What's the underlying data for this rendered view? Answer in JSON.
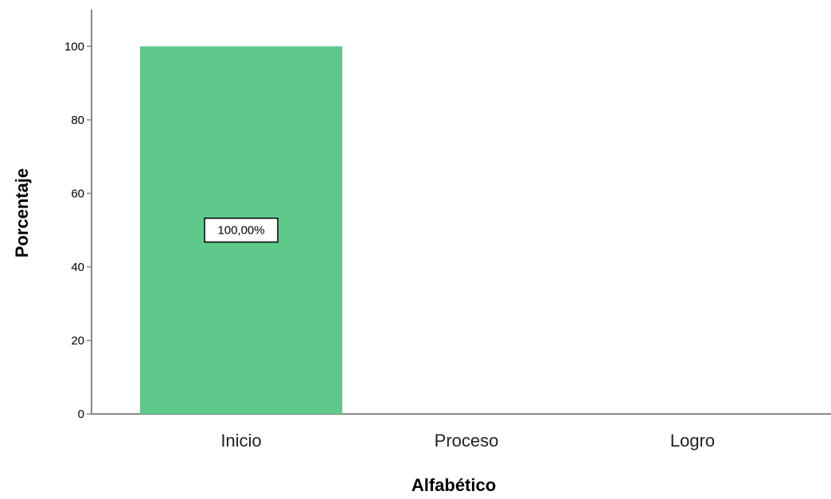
{
  "chart_data": {
    "type": "bar",
    "categories": [
      "Inicio",
      "Proceso",
      "Logro"
    ],
    "values": [
      100,
      0,
      0
    ],
    "data_labels": [
      "100,00%",
      "",
      ""
    ],
    "xlabel": "Alfabético",
    "ylabel": "Porcentaje",
    "ylim": [
      0,
      110
    ],
    "yticks": [
      0,
      20,
      40,
      60,
      80,
      100
    ],
    "grid": false,
    "colors": {
      "bar": "#5ec98b",
      "axis": "#888888"
    }
  }
}
